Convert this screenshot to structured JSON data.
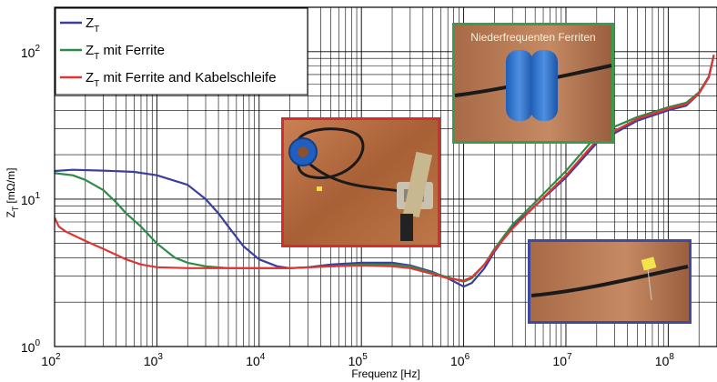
{
  "chart_data": {
    "type": "line",
    "xlabel": "Frequenz [Hz]",
    "ylabel_main": "Z",
    "ylabel_sub": "T",
    "ylabel_unit": "[mΩ/m]",
    "x_scale": "log",
    "y_scale": "log",
    "xlim": [
      100,
      300000000
    ],
    "ylim": [
      1,
      200
    ],
    "grid": true,
    "legend_position": "top-left",
    "x_ticks": [
      {
        "value": 100,
        "base": "10",
        "exp": "2"
      },
      {
        "value": 1000,
        "base": "10",
        "exp": "3"
      },
      {
        "value": 10000,
        "base": "10",
        "exp": "4"
      },
      {
        "value": 100000,
        "base": "10",
        "exp": "5"
      },
      {
        "value": 1000000,
        "base": "10",
        "exp": "6"
      },
      {
        "value": 10000000,
        "base": "10",
        "exp": "7"
      },
      {
        "value": 100000000,
        "base": "10",
        "exp": "8"
      }
    ],
    "y_ticks": [
      {
        "value": 1,
        "base": "10",
        "exp": "0"
      },
      {
        "value": 10,
        "base": "10",
        "exp": "1"
      },
      {
        "value": 100,
        "base": "10",
        "exp": "2"
      }
    ],
    "series": [
      {
        "name": "Z",
        "name_sub": "T",
        "name_suffix": "",
        "color": "#3a3f9e",
        "points": [
          [
            100,
            15.5
          ],
          [
            150,
            15.8
          ],
          [
            300,
            15.6
          ],
          [
            600,
            15.3
          ],
          [
            1000,
            14.5
          ],
          [
            2000,
            12.5
          ],
          [
            3000,
            10
          ],
          [
            4000,
            8
          ],
          [
            5000,
            6.5
          ],
          [
            7000,
            4.8
          ],
          [
            10000,
            3.9
          ],
          [
            15000,
            3.5
          ],
          [
            20000,
            3.4
          ],
          [
            30000,
            3.45
          ],
          [
            50000,
            3.6
          ],
          [
            100000,
            3.7
          ],
          [
            200000,
            3.7
          ],
          [
            300000,
            3.55
          ],
          [
            500000,
            3.2
          ],
          [
            700000,
            2.9
          ],
          [
            1000000,
            2.55
          ],
          [
            1200000,
            2.7
          ],
          [
            1600000,
            3.4
          ],
          [
            2000000,
            4.4
          ],
          [
            3000000,
            6.5
          ],
          [
            5000000,
            9
          ],
          [
            10000000,
            14
          ],
          [
            20000000,
            24
          ],
          [
            30000000,
            28
          ],
          [
            50000000,
            34
          ],
          [
            100000000,
            40
          ],
          [
            150000000,
            43
          ],
          [
            200000000,
            52
          ],
          [
            250000000,
            68
          ],
          [
            280000000,
            95
          ]
        ]
      },
      {
        "name": "Z",
        "name_sub": "T",
        "name_suffix": " mit Ferrite",
        "color": "#2e8b45",
        "points": [
          [
            100,
            15
          ],
          [
            150,
            14.5
          ],
          [
            200,
            13.5
          ],
          [
            300,
            11.5
          ],
          [
            400,
            9.5
          ],
          [
            500,
            8
          ],
          [
            700,
            6.5
          ],
          [
            1000,
            5
          ],
          [
            1500,
            4
          ],
          [
            2000,
            3.7
          ],
          [
            3000,
            3.5
          ],
          [
            5000,
            3.4
          ],
          [
            10000,
            3.4
          ],
          [
            20000,
            3.4
          ],
          [
            50000,
            3.5
          ],
          [
            100000,
            3.6
          ],
          [
            200000,
            3.6
          ],
          [
            300000,
            3.5
          ],
          [
            500000,
            3.15
          ],
          [
            700000,
            2.95
          ],
          [
            1000000,
            2.75
          ],
          [
            1200000,
            2.9
          ],
          [
            1600000,
            3.6
          ],
          [
            2000000,
            4.6
          ],
          [
            3000000,
            6.7
          ],
          [
            5000000,
            9.5
          ],
          [
            10000000,
            15.5
          ],
          [
            20000000,
            27
          ],
          [
            30000000,
            31
          ],
          [
            50000000,
            36
          ],
          [
            100000000,
            42
          ],
          [
            150000000,
            45
          ],
          [
            200000000,
            53
          ],
          [
            250000000,
            68
          ],
          [
            280000000,
            95
          ]
        ]
      },
      {
        "name": "Z",
        "name_sub": "T",
        "name_suffix": " mit Ferrite and Kabelschleife",
        "color": "#e03434",
        "points": [
          [
            100,
            7.5
          ],
          [
            110,
            6.5
          ],
          [
            130,
            6
          ],
          [
            200,
            5.2
          ],
          [
            300,
            4.6
          ],
          [
            500,
            3.9
          ],
          [
            700,
            3.6
          ],
          [
            1000,
            3.45
          ],
          [
            2000,
            3.4
          ],
          [
            5000,
            3.4
          ],
          [
            10000,
            3.4
          ],
          [
            20000,
            3.4
          ],
          [
            50000,
            3.5
          ],
          [
            100000,
            3.55
          ],
          [
            200000,
            3.5
          ],
          [
            300000,
            3.4
          ],
          [
            500000,
            3.1
          ],
          [
            700000,
            2.9
          ],
          [
            1000000,
            2.8
          ],
          [
            1200000,
            2.95
          ],
          [
            1600000,
            3.6
          ],
          [
            2000000,
            4.5
          ],
          [
            3000000,
            6.3
          ],
          [
            5000000,
            9
          ],
          [
            10000000,
            14.5
          ],
          [
            20000000,
            25
          ],
          [
            30000000,
            29
          ],
          [
            50000000,
            35
          ],
          [
            100000000,
            41
          ],
          [
            150000000,
            44
          ],
          [
            200000000,
            52
          ],
          [
            250000000,
            67
          ],
          [
            280000000,
            95
          ]
        ]
      }
    ]
  },
  "photos": {
    "low_freq_ferrite_caption": "Niederfrequenten Ferriten"
  },
  "colors": {
    "photo_frame_red": "#d42d2d",
    "photo_frame_green": "#3d9a4c",
    "photo_frame_blue": "#3d4aa0",
    "copper": "#b36a3e"
  }
}
